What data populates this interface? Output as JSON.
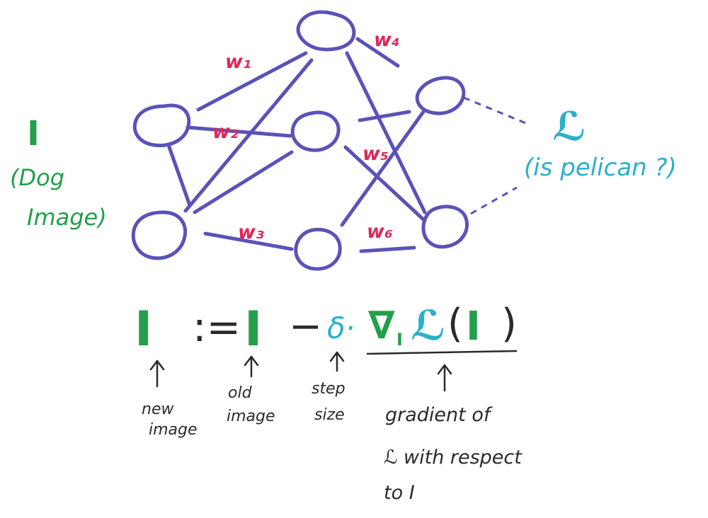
{
  "input": {
    "symbol": "I",
    "caption_line1": "(Dog",
    "caption_line2": "Image)"
  },
  "output": {
    "symbol": "ℒ",
    "caption": "(is pelican ?)"
  },
  "weights": [
    "w₁",
    "w₂",
    "w₃",
    "w₄",
    "w₅",
    "w₆"
  ],
  "equation": {
    "lhs": "I",
    "assign": ":=",
    "old": "I",
    "minus": "−",
    "step": "δ·",
    "nabla": "∇",
    "nabla_sub": "I",
    "loss": "ℒ",
    "open_paren": "(",
    "arg": "I",
    "close_paren": ")"
  },
  "annotations": {
    "new_image": [
      "new",
      "image"
    ],
    "old_image": [
      "old",
      "image"
    ],
    "step_size": [
      "step",
      "size"
    ],
    "gradient": [
      "gradient of",
      "ℒ with respect",
      "to I"
    ]
  },
  "colors": {
    "node": "#5b52b8",
    "weight_label": "#e0265a",
    "image_symbol": "#22a04a",
    "loss_symbol": "#2bb0c8",
    "text": "#2a2a2a"
  }
}
